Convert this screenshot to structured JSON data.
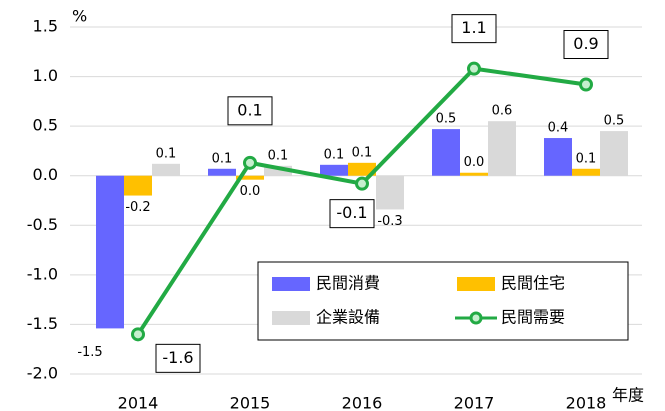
{
  "chart_data": {
    "type": "bar-line",
    "y_label": "%",
    "x_label": "年度",
    "categories": [
      "2014",
      "2015",
      "2016",
      "2017",
      "2018"
    ],
    "series": [
      {
        "name": "民間消費",
        "type": "bar",
        "color": "#6666ff",
        "values": [
          -1.54,
          0.07,
          0.11,
          0.47,
          0.38
        ],
        "value_labels": [
          "-1.5",
          "0.1",
          "0.1",
          "0.5",
          "0.4"
        ]
      },
      {
        "name": "民間住宅",
        "type": "bar",
        "color": "#ffc000",
        "values": [
          -0.2,
          -0.04,
          0.13,
          0.03,
          0.07
        ],
        "value_labels": [
          "-0.2",
          "0.0",
          "0.1",
          "0.0",
          "0.1"
        ]
      },
      {
        "name": "企業設備",
        "type": "bar",
        "color": "#d9d9d9",
        "values": [
          0.12,
          0.1,
          -0.34,
          0.55,
          0.45
        ],
        "value_labels": [
          "0.1",
          "0.1",
          "-0.3",
          "0.6",
          "0.5"
        ]
      },
      {
        "name": "民間需要",
        "type": "line",
        "color": "#22aa44",
        "values": [
          -1.6,
          0.13,
          -0.08,
          1.08,
          0.92
        ],
        "value_labels": [
          "-1.6",
          "0.1",
          "-0.1",
          "1.1",
          "0.9"
        ]
      }
    ],
    "ylim": [
      -2,
      1.5
    ],
    "yticks": [
      {
        "value": -2,
        "label": "-2.0"
      },
      -1.5,
      {
        "value": -1,
        "label": "-1.0"
      },
      -0.5,
      {
        "value": 0,
        "label": "0.0"
      },
      0.5,
      {
        "value": 1,
        "label": "1.0"
      },
      1.5
    ],
    "grid": true
  }
}
